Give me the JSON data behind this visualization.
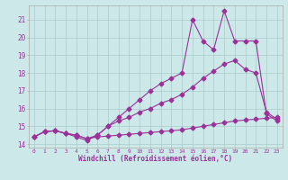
{
  "background_color": "#cce8e8",
  "grid_color": "#aacccc",
  "line_color": "#993399",
  "xlabel": "Windchill (Refroidissement éolien,°C)",
  "ylabel_ticks": [
    14,
    15,
    16,
    17,
    18,
    19,
    20,
    21
  ],
  "xlim": [
    -0.5,
    23.5
  ],
  "ylim": [
    13.8,
    21.8
  ],
  "xtick_labels": [
    "0",
    "1",
    "2",
    "3",
    "4",
    "5",
    "6",
    "7",
    "8",
    "9",
    "10",
    "11",
    "12",
    "13",
    "14",
    "15",
    "16",
    "17",
    "18",
    "19",
    "20",
    "21",
    "22",
    "23"
  ],
  "line1_x": [
    0,
    1,
    2,
    3,
    4,
    5,
    6,
    7,
    8,
    9,
    10,
    11,
    12,
    13,
    14,
    15,
    16,
    17,
    18,
    19,
    20,
    21,
    22,
    23
  ],
  "line1_y": [
    14.4,
    14.7,
    14.75,
    14.6,
    14.5,
    14.3,
    14.4,
    14.45,
    14.5,
    14.55,
    14.6,
    14.65,
    14.7,
    14.75,
    14.8,
    14.9,
    15.0,
    15.1,
    15.2,
    15.3,
    15.35,
    15.4,
    15.45,
    15.5
  ],
  "line2_x": [
    0,
    1,
    2,
    3,
    4,
    5,
    6,
    7,
    8,
    9,
    10,
    11,
    12,
    13,
    14,
    15,
    16,
    17,
    18,
    19,
    20,
    21,
    22,
    23
  ],
  "line2_y": [
    14.4,
    14.7,
    14.75,
    14.6,
    14.5,
    14.3,
    14.5,
    15.0,
    15.3,
    15.5,
    15.8,
    16.0,
    16.3,
    16.5,
    16.8,
    17.2,
    17.7,
    18.1,
    18.5,
    18.7,
    18.2,
    18.0,
    15.8,
    15.4
  ],
  "line3_x": [
    0,
    1,
    2,
    3,
    4,
    5,
    6,
    7,
    8,
    9,
    10,
    11,
    12,
    13,
    14,
    15,
    16,
    17,
    18,
    19,
    20,
    21,
    22,
    23
  ],
  "line3_y": [
    14.4,
    14.7,
    14.75,
    14.6,
    14.4,
    14.2,
    14.5,
    15.0,
    15.5,
    16.0,
    16.5,
    17.0,
    17.4,
    17.7,
    18.0,
    21.0,
    19.8,
    19.3,
    21.5,
    19.8,
    19.8,
    19.8,
    15.7,
    15.3
  ],
  "markersize": 2.5,
  "linewidth": 0.8
}
